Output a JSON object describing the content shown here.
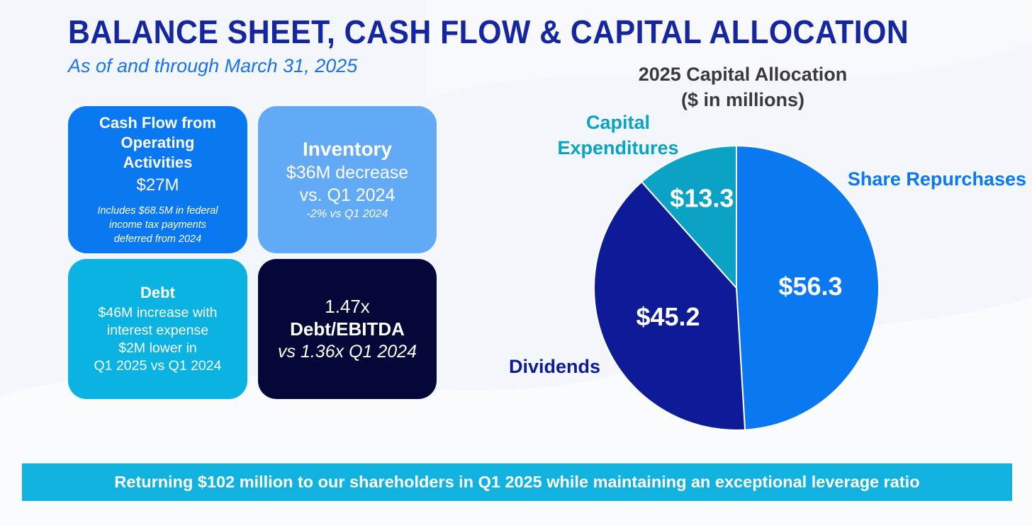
{
  "header": {
    "title": "BALANCE SHEET, CASH FLOW & CAPITAL ALLOCATION",
    "subtitle": "As of and through March 31, 2025"
  },
  "cards": {
    "cash_flow": {
      "title_lines": [
        "Cash Flow from",
        "Operating",
        "Activities"
      ],
      "value": "$27M",
      "note_lines": [
        "Includes $68.5M in federal",
        "income tax payments",
        "deferred from 2024"
      ]
    },
    "inventory": {
      "title": "Inventory",
      "lines": [
        "$36M decrease",
        "vs. Q1 2024"
      ],
      "note": "-2% vs Q1 2024"
    },
    "debt": {
      "title": "Debt",
      "lines": [
        "$46M increase with",
        "interest expense",
        "$2M lower in",
        "Q1 2025 vs Q1 2024"
      ]
    },
    "leverage": {
      "value": "1.47x",
      "label": "Debt/EBITDA",
      "note": "vs 1.36x Q1 2024"
    }
  },
  "chart_data": {
    "type": "pie",
    "title_lines": [
      "2025 Capital Allocation",
      "($ in millions)"
    ],
    "start_angle_deg": 0,
    "direction": "clockwise",
    "slices": [
      {
        "label": "Share Repurchases",
        "value": 56.3,
        "value_label": "$56.3",
        "color": "#0a78f0",
        "label_color": "#0a78f0"
      },
      {
        "label": "Dividends",
        "value": 45.2,
        "value_label": "$45.2",
        "color": "#0d1c96",
        "label_color": "#0d1c96"
      },
      {
        "label_lines": [
          "Capital",
          "Expenditures"
        ],
        "value": 13.3,
        "value_label": "$13.3",
        "color": "#0aa3c6",
        "label_color": "#0aa3c6"
      }
    ],
    "legend": "none"
  },
  "banner": {
    "text": "Returning $102 million to our shareholders in Q1 2025 while maintaining an exceptional leverage ratio"
  },
  "colors": {
    "title": "#1426a0",
    "subtitle": "#1a73e8",
    "cash_card": "#0a78f0",
    "inventory_card": "#63aaf6",
    "debt_card": "#0ab3e2",
    "leverage_card": "#040738",
    "banner": "#12b2e0",
    "chart_title": "#3a3a3a"
  }
}
